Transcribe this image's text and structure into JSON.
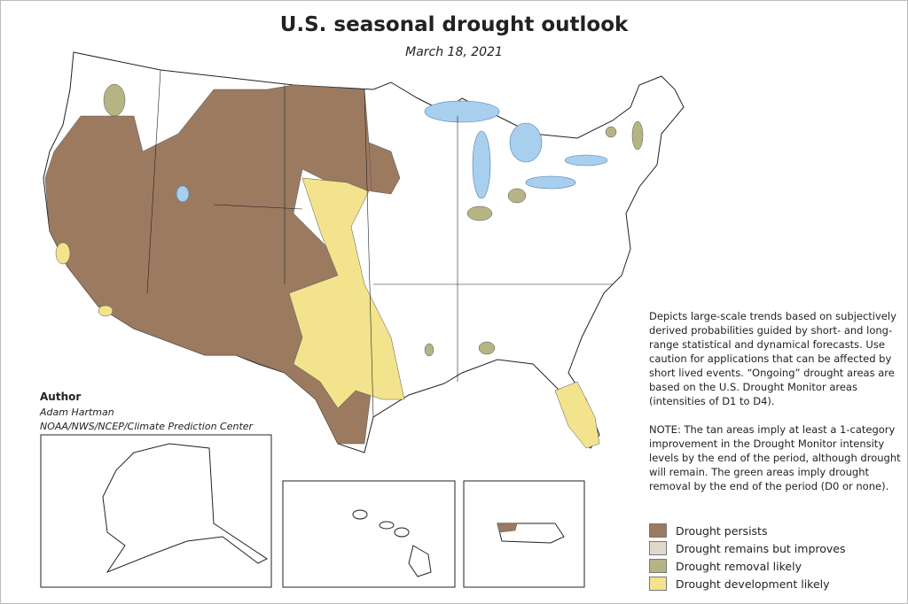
{
  "header": {
    "title": "U.S. seasonal drought outlook",
    "subtitle": "March 18, 2021"
  },
  "author": {
    "heading": "Author",
    "name": "Adam Hartman",
    "organization": "NOAA/NWS/NCEP/Climate Prediction Center"
  },
  "description": "Depicts large-scale trends based on subjectively derived probabilities guided by short- and long-range statistical and dynamical forecasts. Use caution for applications that can be affected by short lived events. “Ongoing” drought areas are based on the U.S. Drought Monitor areas (intensities of D1 to D4).",
  "note": "NOTE: The tan areas imply at least a 1-category improvement in the Drought Monitor intensity levels by the end of the period, although drought will remain. The green areas imply drought removal by the end of the period (D0 or none).",
  "legend": [
    {
      "label": "Drought persists",
      "color": "#9c7a60"
    },
    {
      "label": "Drought remains but improves",
      "color": "#e2d8ca"
    },
    {
      "label": "Drought removal likely",
      "color": "#b6b485"
    },
    {
      "label": "Drought development likely",
      "color": "#f3e38c"
    }
  ]
}
